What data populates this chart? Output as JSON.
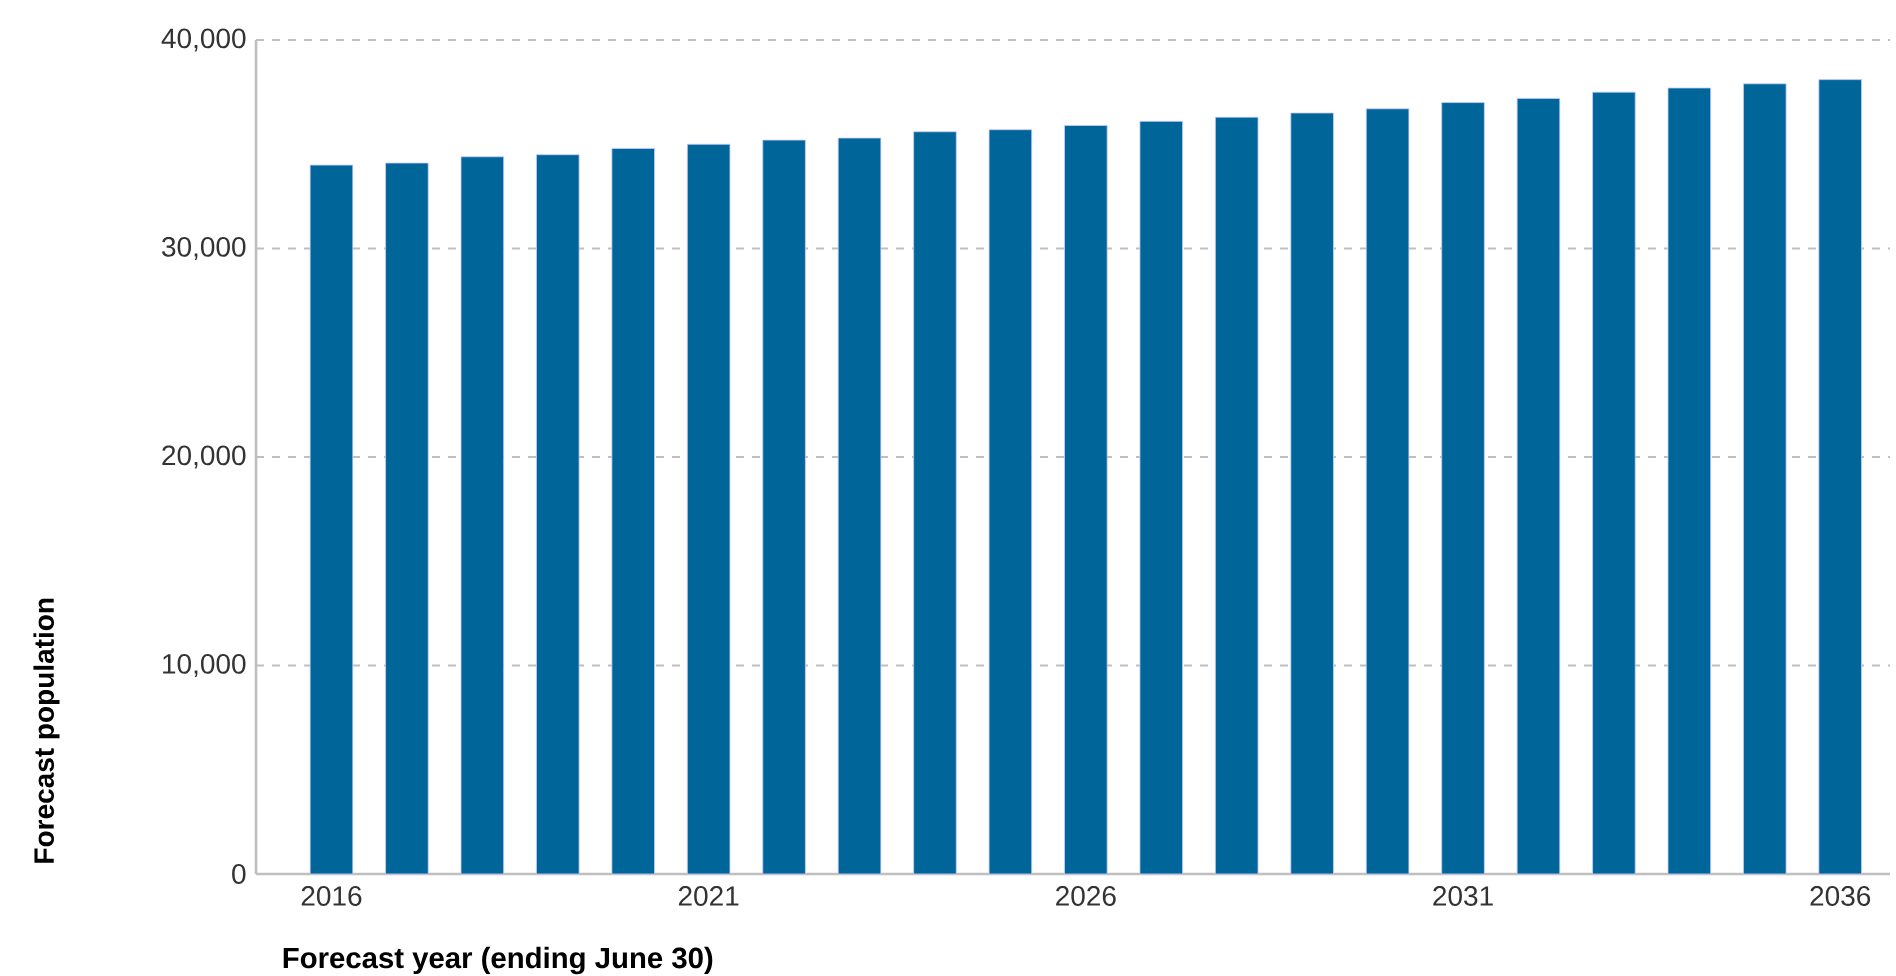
{
  "chart_data": {
    "type": "bar",
    "xlabel": "Forecast year (ending June 30)",
    "ylabel": "Forecast population",
    "categories": [
      "2016",
      null,
      null,
      null,
      null,
      "2021",
      null,
      null,
      null,
      null,
      "2026",
      null,
      null,
      null,
      null,
      "2031",
      null,
      null,
      null,
      null,
      "2036"
    ],
    "values": [
      34000,
      34100,
      34400,
      34500,
      34800,
      35000,
      35200,
      35300,
      35600,
      35700,
      35900,
      36100,
      36300,
      36500,
      36700,
      37000,
      37200,
      37500,
      37700,
      37900,
      38100
    ],
    "color": "#006699",
    "ylim": [
      0,
      40000
    ],
    "yticks": [
      0,
      {
        "value": 10000,
        "label": "10,000"
      },
      {
        "value": 20000,
        "label": "20,000"
      },
      {
        "value": 30000,
        "label": "30,000"
      },
      {
        "value": 40000,
        "label": "40,000"
      }
    ],
    "grid": "y"
  }
}
